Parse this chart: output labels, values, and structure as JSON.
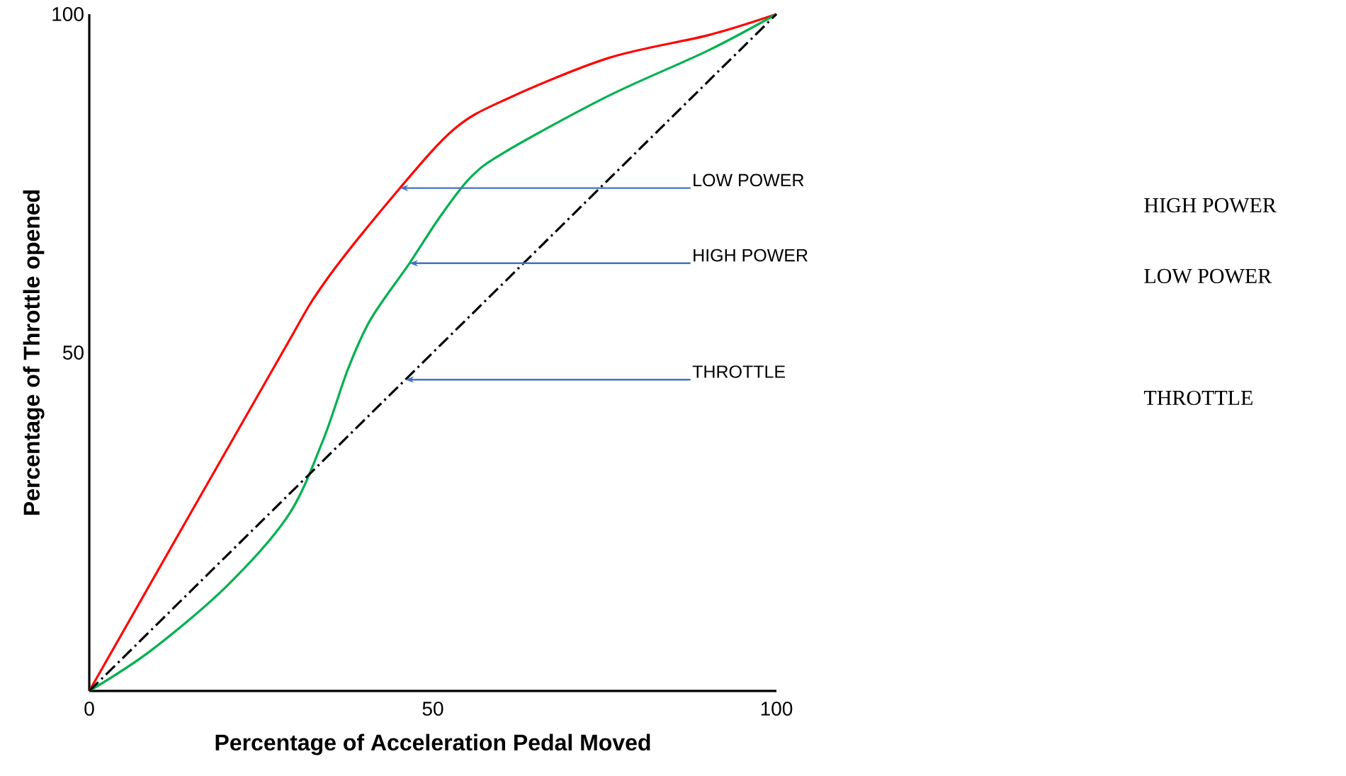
{
  "chart_data": {
    "type": "line",
    "xlabel": "Percentage of Acceleration Pedal Moved",
    "ylabel": "Percentage of Throttle opened",
    "xlim": [
      0,
      100
    ],
    "ylim": [
      0,
      100
    ],
    "xticks": [
      0,
      50,
      100
    ],
    "yticks": [
      50,
      100
    ],
    "series": [
      {
        "color": "#ff0000",
        "line_style": "solid",
        "x": [
          0,
          26.8,
          34.2,
          45.2,
          53.2,
          60.6,
          75.5,
          90.1,
          100
        ],
        "values": [
          0,
          47.7,
          60.3,
          74.3,
          83.1,
          87.4,
          93.5,
          96.9,
          100
        ]
      },
      {
        "color": "#00b050",
        "line_style": "solid",
        "x": [
          0,
          9,
          20,
          29,
          34,
          37.7,
          41,
          46.6,
          51,
          55.5,
          60.6,
          75.5,
          90,
          100
        ],
        "values": [
          0,
          6,
          15.5,
          26,
          37,
          47.7,
          55,
          63.2,
          70,
          75.9,
          79.7,
          87.9,
          94.6,
          100
        ]
      },
      {
        "color": "#000000",
        "line_style": "dashed",
        "x": [
          0,
          100
        ],
        "values": [
          0,
          100
        ]
      }
    ],
    "annotations": [
      "LOW POWER",
      "HIGH POWER",
      "THROTTLE",
      "HIGH POWER",
      "LOW POWER",
      "THROTTLE"
    ]
  }
}
